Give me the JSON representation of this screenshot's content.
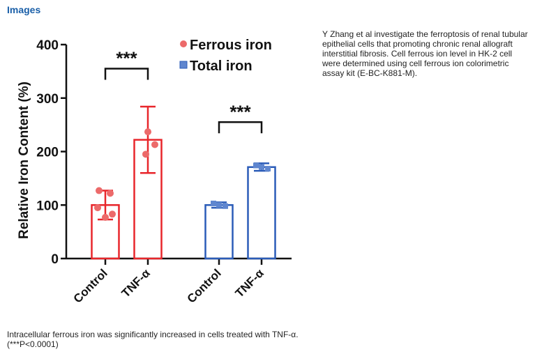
{
  "section": {
    "title": "Images"
  },
  "description": "Y Zhang et al investigate the ferroptosis of renal tubular epithelial cells that promoting chronic renal allograft interstitial fibrosis. Cell ferrous ion level in HK-2 cell were determined using cell ferrous ion colorimetric assay kit (E-BC-K881-M).",
  "caption": "Intracellular ferrous iron was significantly increased in cells treated with TNF-α. (***P<0.0001)",
  "chart_data": {
    "type": "bar",
    "title": "",
    "xlabel": "",
    "ylabel": "Relative Iron Content (%)",
    "ylim": [
      0,
      400
    ],
    "yticks": [
      0,
      100,
      200,
      300,
      400
    ],
    "grid": false,
    "legend_position": "top-right",
    "categories": [
      "Control",
      "TNF-α",
      "Control",
      "TNF-α"
    ],
    "series": [
      {
        "name": "Ferrous iron",
        "color": "#e8262b",
        "marker": "circle",
        "groups": [
          {
            "category": "Control",
            "value": 100,
            "error": 27,
            "points": [
              127,
              122,
              95,
              83,
              77
            ]
          },
          {
            "category": "TNF-α",
            "value": 222,
            "error": 62,
            "points": [
              237,
              213,
              195
            ]
          }
        ]
      },
      {
        "name": "Total iron",
        "color": "#2b5cb8",
        "marker": "square",
        "groups": [
          {
            "category": "Control",
            "value": 100,
            "error": 5,
            "points": [
              103,
              100,
              98
            ]
          },
          {
            "category": "TNF-α",
            "value": 171,
            "error": 7,
            "points": [
              174,
              171,
              168
            ]
          }
        ]
      }
    ],
    "annotations": [
      {
        "text": "***",
        "between": [
          "Control",
          "TNF-α"
        ],
        "series": "Ferrous iron"
      },
      {
        "text": "***",
        "between": [
          "Control",
          "TNF-α"
        ],
        "series": "Total iron"
      }
    ]
  }
}
